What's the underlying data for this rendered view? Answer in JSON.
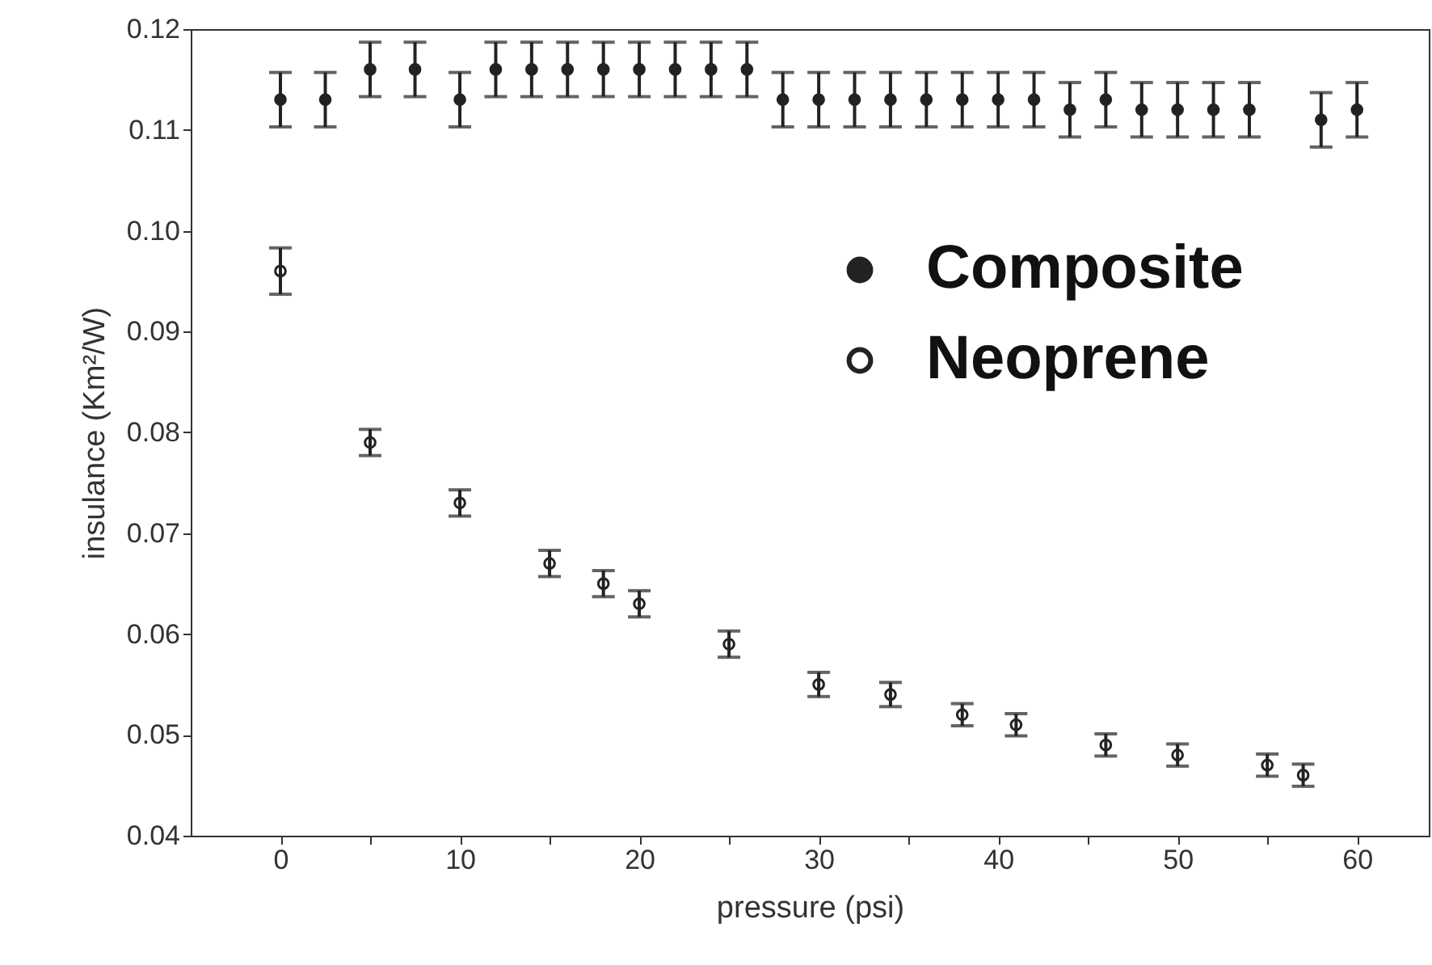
{
  "chart_data": {
    "type": "scatter",
    "xlabel": "pressure (psi)",
    "ylabel": "insulance (Km²/W)",
    "xlim": [
      -5,
      64
    ],
    "ylim": [
      0.04,
      0.12
    ],
    "xticks": [
      0,
      {
        "value": 5,
        "label": null
      },
      10,
      {
        "value": 15,
        "label": null
      },
      20,
      {
        "value": 25,
        "label": null
      },
      30,
      {
        "value": 35,
        "label": null
      },
      40,
      {
        "value": 45,
        "label": null
      },
      50,
      {
        "value": 55,
        "label": null
      },
      60
    ],
    "yticks": [
      0.04,
      0.05,
      0.06,
      0.07,
      0.08,
      0.09,
      {
        "value": 0.1,
        "label": "0.10"
      },
      0.11,
      0.12
    ],
    "legend": "top right",
    "marker": "circle",
    "grid": false,
    "series": [
      {
        "name": "Composite",
        "color": "#222222",
        "x": [
          0,
          2.5,
          5,
          7.5,
          10,
          12,
          14,
          16,
          18,
          20,
          22,
          24,
          26,
          28,
          30,
          32,
          34,
          36,
          38,
          40,
          42,
          44,
          46,
          48,
          50,
          52,
          54,
          58,
          60
        ],
        "values": [
          0.113,
          0.113,
          0.116,
          0.116,
          0.113,
          0.116,
          0.116,
          0.116,
          0.116,
          0.116,
          0.116,
          0.116,
          0.116,
          0.113,
          0.113,
          0.113,
          0.113,
          0.113,
          0.113,
          0.113,
          0.113,
          0.112,
          0.113,
          0.112,
          0.112,
          0.112,
          0.112,
          0.111,
          0.112
        ],
        "errors": [
          0.0027,
          0.0027,
          0.0027,
          0.0027,
          0.0027,
          0.0027,
          0.0027,
          0.0027,
          0.0027,
          0.0027,
          0.0027,
          0.0027,
          0.0027,
          0.0027,
          0.0027,
          0.0027,
          0.0027,
          0.0027,
          0.0027,
          0.0027,
          0.0027,
          0.0027,
          0.0027,
          0.0027,
          0.0027,
          0.0027,
          0.0027,
          0.0027,
          0.0027
        ]
      },
      {
        "name": "Neoprene",
        "color": "#222222",
        "x": [
          0,
          5,
          10,
          15,
          18,
          20,
          25,
          30,
          34,
          38,
          41,
          46,
          50,
          55,
          57
        ],
        "values": [
          0.096,
          0.079,
          0.073,
          0.067,
          0.065,
          0.063,
          0.059,
          0.055,
          0.054,
          0.052,
          0.051,
          0.049,
          0.048,
          0.047,
          0.046
        ],
        "errors": [
          0.0023,
          0.0013,
          0.0013,
          0.0013,
          0.0013,
          0.0013,
          0.0013,
          0.0012,
          0.0012,
          0.0011,
          0.0011,
          0.0011,
          0.0011,
          0.0011,
          0.0011
        ]
      }
    ]
  }
}
